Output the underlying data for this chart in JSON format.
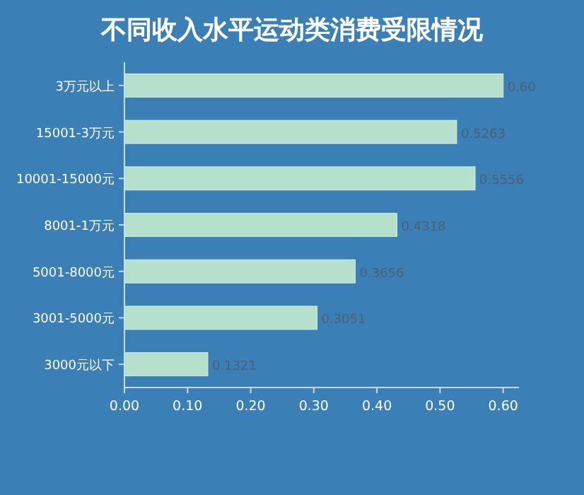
{
  "chart_data": {
    "type": "bar",
    "orientation": "horizontal",
    "title": "不同收入水平运动类消费受限情况",
    "categories": [
      "3万元以上",
      "15001-3万元",
      "10001-15000元",
      "8001-1万元",
      "5001-8000元",
      "3001-5000元",
      "3000元以下"
    ],
    "values": [
      0.6,
      0.5263,
      0.5556,
      0.4318,
      0.3656,
      0.3051,
      0.1321
    ],
    "value_labels": [
      "0.60",
      "0.5263",
      "0.5556",
      "0.4318",
      "0.3656",
      "0.3051",
      "0.1321"
    ],
    "color": "#b5e0cc",
    "xlim": [
      0,
      0.625
    ],
    "xticks": [
      {
        "value": 0,
        "label": "0.00"
      },
      {
        "value": 0.1,
        "label": "0.10"
      },
      {
        "value": 0.2,
        "label": "0.20"
      },
      {
        "value": 0.3,
        "label": "0.30"
      },
      {
        "value": 0.4,
        "label": "0.40"
      },
      {
        "value": 0.5,
        "label": "0.50"
      },
      {
        "value": 0.6,
        "label": "0.60"
      }
    ]
  }
}
